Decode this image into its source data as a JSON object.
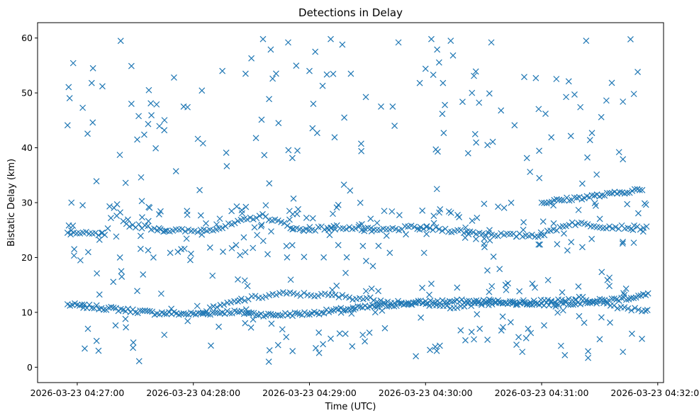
{
  "chart_data": {
    "type": "scatter",
    "title": "Detections in Delay",
    "xlabel": "Time (UTC)",
    "ylabel": "Bistatic Delay (km)",
    "marker": "x",
    "color": "#1f77b4",
    "x_unit": "seconds after 2026-03-23 04:27:00",
    "xlim": [
      -20.5,
      303
    ],
    "ylim": [
      -2.8,
      62.8
    ],
    "xticks": [
      0,
      60,
      120,
      180,
      240,
      300
    ],
    "xtick_labels": [
      "2026-03-23 04:27:00",
      "2026-03-23 04:28:00",
      "2026-03-23 04:29:00",
      "2026-03-23 04:30:00",
      "2026-03-23 04:31:00",
      "2026-03-23 04:32:00"
    ],
    "yticks": [
      0,
      10,
      20,
      30,
      40,
      50,
      60
    ],
    "ytick_labels": [
      "0",
      "10",
      "20",
      "30",
      "40",
      "50",
      "60"
    ],
    "tracks": [
      {
        "name": "lower track",
        "x_start": -5,
        "x_end": 295,
        "step": 1.25,
        "knots": [
          [
            -5,
            11.4
          ],
          [
            20,
            10.6
          ],
          [
            40,
            9.9
          ],
          [
            60,
            9.7
          ],
          [
            80,
            10.1
          ],
          [
            100,
            9.5
          ],
          [
            120,
            9.8
          ],
          [
            140,
            10.6
          ],
          [
            160,
            11.3
          ],
          [
            180,
            11.9
          ],
          [
            200,
            12.0
          ],
          [
            220,
            11.9
          ],
          [
            240,
            11.5
          ],
          [
            260,
            11.8
          ],
          [
            280,
            12.4
          ],
          [
            295,
            13.2
          ]
        ]
      },
      {
        "name": "upper track",
        "x_start": -5,
        "x_end": 295,
        "step": 1.6,
        "knots": [
          [
            -5,
            24.5
          ],
          [
            15,
            24.1
          ],
          [
            20,
            29.9
          ],
          [
            25,
            26.0
          ],
          [
            35,
            25.6
          ],
          [
            45,
            25.0
          ],
          [
            60,
            24.8
          ],
          [
            75,
            25.5
          ],
          [
            95,
            27.7
          ],
          [
            115,
            25.0
          ],
          [
            135,
            25.6
          ],
          [
            155,
            24.9
          ],
          [
            175,
            25.5
          ],
          [
            195,
            24.9
          ],
          [
            210,
            24.4
          ],
          [
            225,
            24.0
          ],
          [
            240,
            24.1
          ],
          [
            255,
            26.3
          ],
          [
            275,
            25.6
          ],
          [
            295,
            25.4
          ]
        ]
      },
      {
        "name": "secondary track",
        "x_start": 65,
        "x_end": 295,
        "step": 1.8,
        "knots": [
          [
            65,
            10.2
          ],
          [
            85,
            12.3
          ],
          [
            105,
            13.4
          ],
          [
            130,
            13.1
          ],
          [
            160,
            12.1
          ],
          [
            190,
            11.0
          ],
          [
            215,
            11.6
          ],
          [
            240,
            12.0
          ],
          [
            260,
            12.6
          ],
          [
            280,
            11.0
          ],
          [
            295,
            10.3
          ]
        ]
      },
      {
        "name": "rising track",
        "x_start": 240,
        "x_end": 292,
        "step": 1.3,
        "knots": [
          [
            240,
            30.0
          ],
          [
            262,
            31.0
          ],
          [
            275,
            31.5
          ],
          [
            292,
            32.5
          ]
        ]
      }
    ],
    "track_jitter_km": 0.35,
    "clutter": {
      "count": 330,
      "seed": 7,
      "y_range": [
        1,
        60
      ],
      "dense_band": [
        20,
        30
      ],
      "dense_fraction": 0.42,
      "mid_band": [
        3,
        18
      ],
      "mid_fraction": 0.22
    },
    "points": [
      [
        -5,
        44.1
      ],
      [
        8,
        44.6
      ],
      [
        13,
        51.2
      ],
      [
        22,
        38.7
      ],
      [
        25,
        33.6
      ],
      [
        28,
        54.9
      ],
      [
        28,
        48.0
      ],
      [
        31,
        41.5
      ],
      [
        33,
        34.6
      ],
      [
        37,
        50.5
      ],
      [
        38,
        48.1
      ],
      [
        41,
        47.9
      ],
      [
        45,
        43.2
      ],
      [
        50,
        52.8
      ],
      [
        55,
        47.5
      ],
      [
        57,
        47.4
      ],
      [
        65,
        40.8
      ],
      [
        75,
        54.0
      ],
      [
        77,
        39.1
      ],
      [
        87,
        53.5
      ],
      [
        90,
        56.3
      ],
      [
        96,
        59.8
      ],
      [
        100,
        57.9
      ],
      [
        101,
        52.6
      ],
      [
        104,
        44.5
      ],
      [
        109,
        59.2
      ],
      [
        120,
        54.0
      ],
      [
        123,
        57.5
      ],
      [
        122,
        48.0
      ],
      [
        124,
        42.7
      ],
      [
        131,
        59.8
      ],
      [
        133,
        41.9
      ],
      [
        137,
        58.8
      ],
      [
        141,
        32.2
      ],
      [
        138,
        45.5
      ],
      [
        157,
        47.5
      ],
      [
        163,
        47.5
      ],
      [
        164,
        44.0
      ],
      [
        166,
        59.2
      ],
      [
        177,
        51.8
      ],
      [
        180,
        54.4
      ],
      [
        183,
        59.8
      ],
      [
        184,
        53.3
      ],
      [
        186,
        57.9
      ],
      [
        189,
        51.8
      ],
      [
        190,
        47.8
      ],
      [
        193,
        59.5
      ],
      [
        202,
        39.0
      ],
      [
        205,
        53.1
      ],
      [
        206,
        53.9
      ],
      [
        204,
        50.0
      ],
      [
        212,
        40.5
      ],
      [
        213,
        49.9
      ],
      [
        214,
        59.2
      ],
      [
        219,
        46.8
      ],
      [
        226,
        44.1
      ],
      [
        231,
        52.9
      ],
      [
        234,
        35.6
      ],
      [
        237,
        52.7
      ],
      [
        242,
        46.2
      ],
      [
        245,
        41.9
      ],
      [
        254,
        52.1
      ],
      [
        257,
        49.7
      ],
      [
        260,
        47.4
      ],
      [
        263,
        59.5
      ],
      [
        265,
        41.4
      ],
      [
        266,
        42.7
      ],
      [
        280,
        39.2
      ],
      [
        282,
        37.9
      ],
      [
        282,
        48.4
      ],
      [
        23,
        16.5
      ],
      [
        31,
        13.9
      ],
      [
        34,
        16.9
      ],
      [
        -3,
        30.0
      ],
      [
        10,
        4.8
      ],
      [
        11,
        3.0
      ],
      [
        29,
        4.5
      ],
      [
        32,
        1.1
      ],
      [
        45,
        5.9
      ],
      [
        83,
        16.0
      ],
      [
        88,
        14.8
      ],
      [
        99,
        1.0
      ],
      [
        106,
        6.9
      ],
      [
        108,
        5.5
      ],
      [
        125,
        2.6
      ],
      [
        127,
        4.2
      ],
      [
        131,
        5.2
      ],
      [
        151,
        6.3
      ],
      [
        159,
        7.1
      ],
      [
        175,
        2.0
      ],
      [
        183,
        15.2
      ],
      [
        208,
        7.0
      ],
      [
        212,
        5.0
      ],
      [
        220,
        7.3
      ],
      [
        224,
        8.2
      ],
      [
        227,
        4.1
      ],
      [
        230,
        2.8
      ],
      [
        232,
        5.3
      ],
      [
        233,
        7.0
      ],
      [
        250,
        3.9
      ],
      [
        252,
        2.2
      ],
      [
        259,
        14.7
      ],
      [
        264,
        2.9
      ],
      [
        264,
        1.7
      ],
      [
        262,
        8.1
      ],
      [
        270,
        5.1
      ],
      [
        275,
        14.8
      ],
      [
        282,
        2.8
      ]
    ]
  }
}
